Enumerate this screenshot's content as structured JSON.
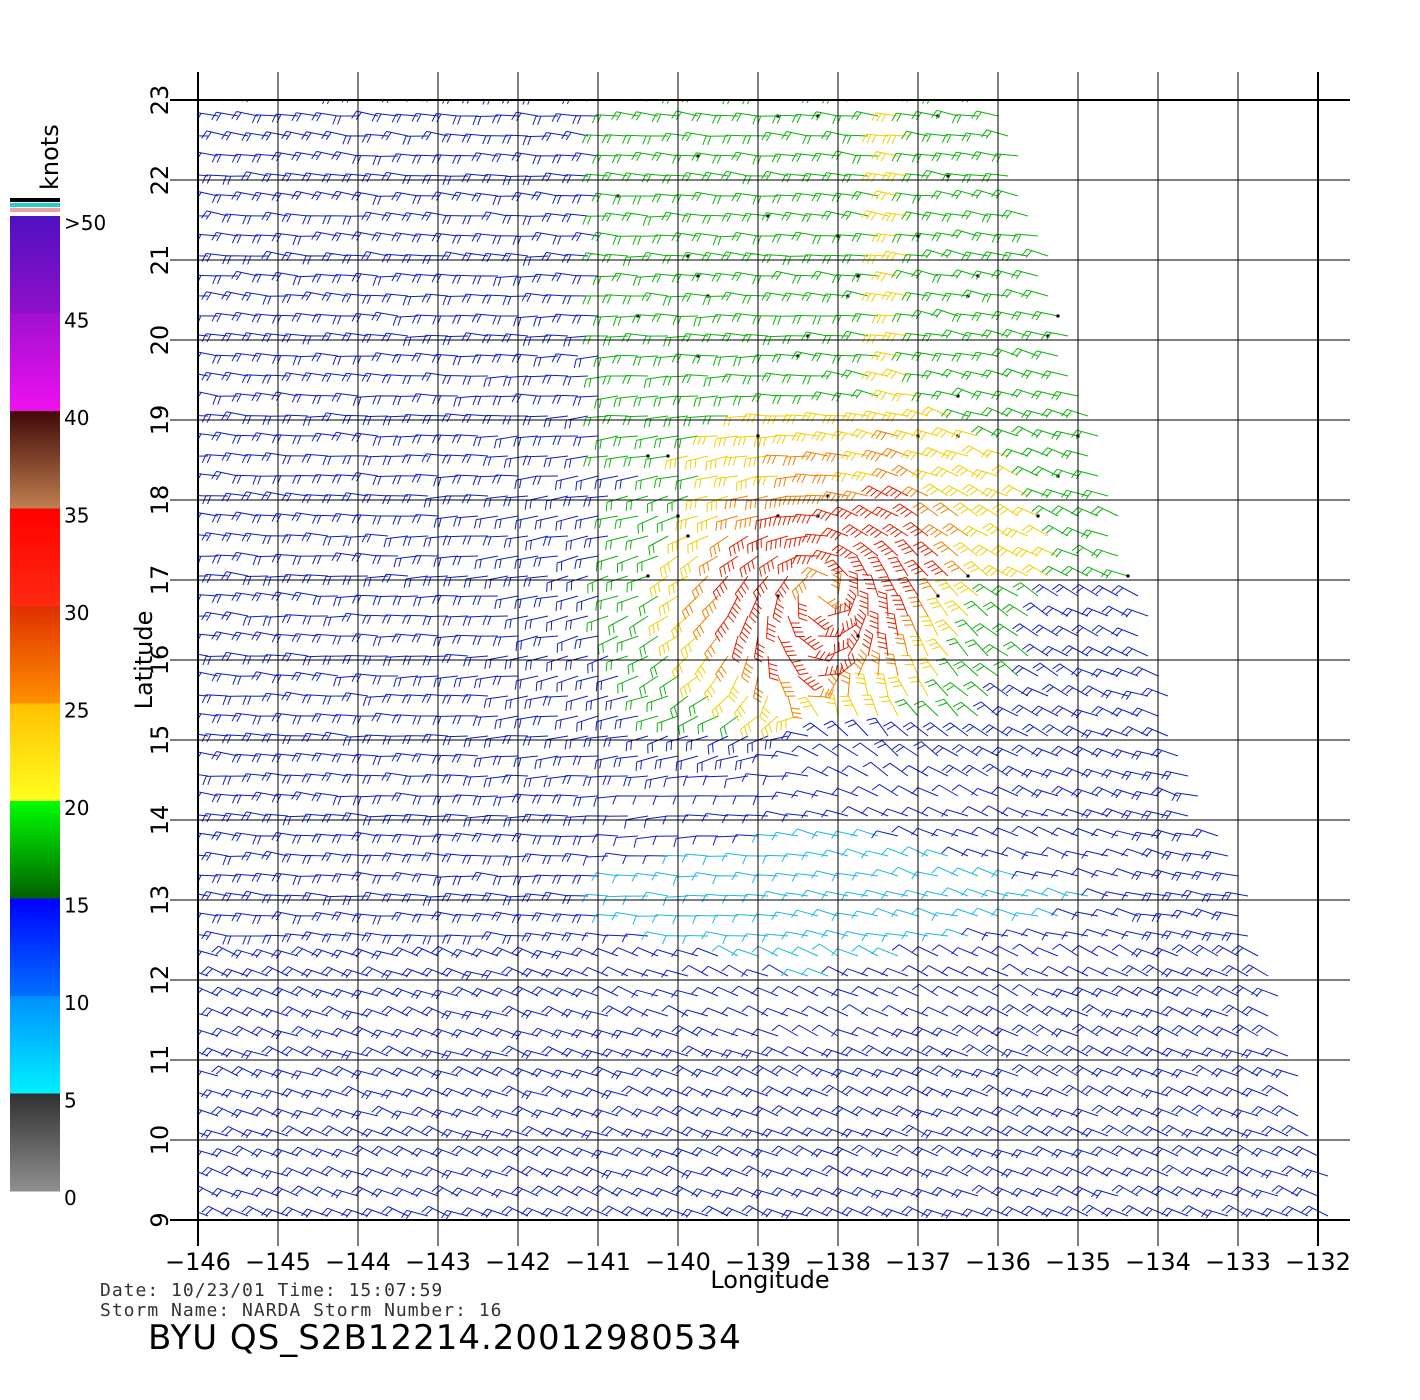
{
  "chart_data": {
    "type": "wind-barb-map",
    "xlabel": "Longitude",
    "ylabel": "Latitude",
    "xlim": [
      -146,
      -132
    ],
    "ylim": [
      9,
      23
    ],
    "x_ticks": [
      "−146",
      "−145",
      "−144",
      "−143",
      "−142",
      "−141",
      "−140",
      "−139",
      "−138",
      "−137",
      "−136",
      "−135",
      "−134",
      "−133",
      "−132"
    ],
    "y_ticks": [
      "9",
      "10",
      "11",
      "12",
      "13",
      "14",
      "15",
      "16",
      "17",
      "18",
      "19",
      "20",
      "21",
      "22",
      "23"
    ],
    "grid": true,
    "storm_center": {
      "lon": -138.2,
      "lat": 16.9
    },
    "colorbar": {
      "unit": "knots",
      "labels": [
        ">50",
        "45",
        "40",
        "35",
        "30",
        "25",
        "20",
        "15",
        "10",
        "5",
        "0"
      ],
      "bands": [
        {
          "range": [
            45,
            50
          ],
          "colors": [
            "#5010c0",
            "#9010c8"
          ]
        },
        {
          "range": [
            40,
            45
          ],
          "colors": [
            "#a010d0",
            "#f010f0"
          ]
        },
        {
          "range": [
            35,
            40
          ],
          "colors": [
            "#400808",
            "#c08050"
          ]
        },
        {
          "range": [
            30,
            35
          ],
          "colors": [
            "#ff0000",
            "#ff2a10"
          ]
        },
        {
          "range": [
            25,
            30
          ],
          "colors": [
            "#e03000",
            "#ff9000"
          ]
        },
        {
          "range": [
            20,
            25
          ],
          "colors": [
            "#ffc000",
            "#ffff20"
          ]
        },
        {
          "range": [
            15,
            20
          ],
          "colors": [
            "#00ff00",
            "#006000"
          ]
        },
        {
          "range": [
            10,
            15
          ],
          "colors": [
            "#0000ff",
            "#0070ff"
          ]
        },
        {
          "range": [
            5,
            10
          ],
          "colors": [
            "#0090ff",
            "#00f0ff"
          ]
        },
        {
          "range": [
            0,
            5
          ],
          "colors": [
            "#303030",
            "#909090"
          ]
        }
      ]
    },
    "speed_colors": {
      "blue": "#1020c0",
      "cyan": "#20b8e0",
      "green": "#10b010",
      "yellow": "#f0d000",
      "orange": "#f08000",
      "red": "#e02000"
    }
  },
  "footer": {
    "line1": "Date: 10/23/01   Time: 15:07:59",
    "line2": "Storm Name: NARDA   Storm Number: 16",
    "title": "BYU QS_S2B12214.20012980534"
  }
}
